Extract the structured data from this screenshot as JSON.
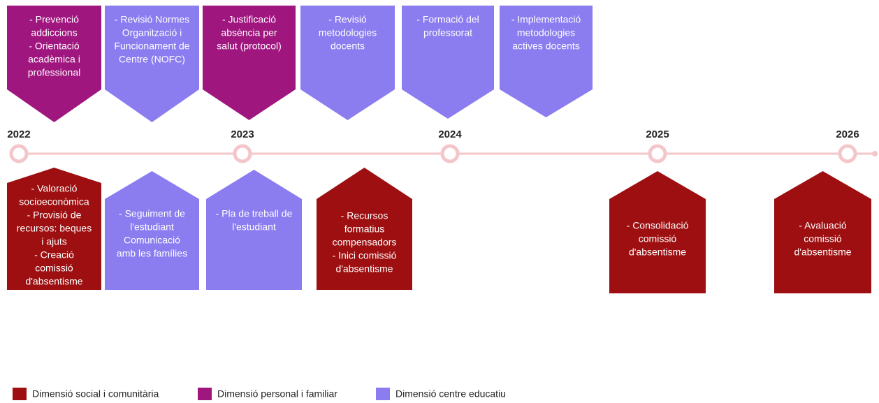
{
  "years": [
    "2022",
    "2023",
    "2024",
    "2025",
    "2026"
  ],
  "top_items": [
    {
      "lines": [
        "- Prevenció",
        "addiccions",
        "- Orientació",
        "acadèmica i",
        "professional"
      ]
    },
    {
      "lines": [
        "- Revisió Normes",
        "Organització i",
        "Funcionament de",
        "Centre (NOFC)"
      ]
    },
    {
      "lines": [
        "- Justificació",
        "absència per",
        "salut (protocol)"
      ]
    },
    {
      "lines": [
        "- Revisió",
        "metodologies",
        "docents"
      ]
    },
    {
      "lines": [
        "- Formació del",
        "professorat"
      ]
    },
    {
      "lines": [
        "- Implementació",
        "metodologies",
        "actives docents"
      ]
    }
  ],
  "bottom_items": [
    {
      "lines": [
        "- Valoració",
        "socioeconòmica",
        "- Provisió de",
        "recursos: beques",
        "i ajuts",
        "- Creació",
        "comissió",
        "d'absentisme"
      ]
    },
    {
      "lines": [
        "- Seguiment de",
        "l'estudiant",
        "Comunicació",
        "amb les famílies"
      ]
    },
    {
      "lines": [
        "- Pla de treball de",
        "l'estudiant"
      ]
    },
    {
      "lines": [
        "- Recursos",
        "formatius",
        "compensadors",
        "- Inici comissió",
        "d'absentisme"
      ]
    },
    {
      "lines": [
        "- Consolidació",
        "comissió",
        "d'absentisme"
      ]
    },
    {
      "lines": [
        "- Avaluació",
        "comissió",
        "d'absentisme"
      ]
    }
  ],
  "legend": [
    "Dimensió social i comunitària",
    "Dimensió personal i familiar",
    "Dimensió centre educatiu"
  ]
}
